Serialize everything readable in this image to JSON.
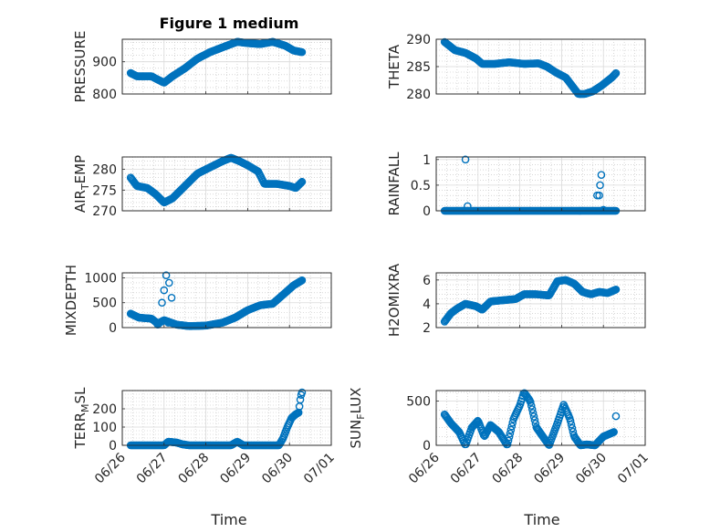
{
  "figure": {
    "title": "Figure 1 medium",
    "xlabel": "Time",
    "series_color": "#0072bd",
    "grid": "on",
    "minor_grid": "on"
  },
  "chart_data": [
    {
      "type": "scatter",
      "title": "Figure 1 medium",
      "ylabel": "PRESSURE",
      "xlabel": "",
      "ylim": [
        800,
        970
      ],
      "yticks": [
        800,
        900
      ],
      "xticks": [
        "06/26",
        "06/27",
        "06/28",
        "06/29",
        "06/30",
        "07/01"
      ],
      "xlim": [
        "06/26",
        "07/01"
      ],
      "shape": [
        [
          0.2,
          865
        ],
        [
          0.35,
          855
        ],
        [
          0.7,
          855
        ],
        [
          0.8,
          848
        ],
        [
          1.0,
          835
        ],
        [
          1.2,
          855
        ],
        [
          1.5,
          880
        ],
        [
          1.8,
          910
        ],
        [
          2.1,
          930
        ],
        [
          2.5,
          950
        ],
        [
          2.75,
          962
        ],
        [
          3.0,
          958
        ],
        [
          3.3,
          955
        ],
        [
          3.6,
          962
        ],
        [
          3.9,
          950
        ],
        [
          4.1,
          935
        ],
        [
          4.3,
          930
        ]
      ]
    },
    {
      "type": "scatter",
      "ylabel": "THETA",
      "xlabel": "",
      "ylim": [
        280,
        290
      ],
      "yticks": [
        280,
        285,
        290
      ],
      "xticks": [
        "06/26",
        "06/27",
        "06/28",
        "06/29",
        "06/30",
        "07/01"
      ],
      "xlim": [
        "06/26",
        "07/01"
      ],
      "shape": [
        [
          0.2,
          289.5
        ],
        [
          0.45,
          288
        ],
        [
          0.7,
          287.5
        ],
        [
          0.95,
          286.5
        ],
        [
          1.1,
          285.5
        ],
        [
          1.4,
          285.5
        ],
        [
          1.75,
          285.8
        ],
        [
          2.1,
          285.5
        ],
        [
          2.45,
          285.6
        ],
        [
          2.65,
          285
        ],
        [
          2.85,
          284
        ],
        [
          3.1,
          283
        ],
        [
          3.25,
          281.5
        ],
        [
          3.4,
          280
        ],
        [
          3.55,
          280
        ],
        [
          3.75,
          280.5
        ],
        [
          3.95,
          281.5
        ],
        [
          4.2,
          283
        ],
        [
          4.3,
          283.8
        ]
      ]
    },
    {
      "type": "scatter",
      "ylabel": "AIR_TEMP",
      "xlabel": "",
      "ylim": [
        270,
        283
      ],
      "yticks": [
        270,
        275,
        280
      ],
      "xticks": [
        "06/26",
        "06/27",
        "06/28",
        "06/29",
        "06/30",
        "07/01"
      ],
      "xlim": [
        "06/26",
        "07/01"
      ],
      "shape": [
        [
          0.2,
          278
        ],
        [
          0.35,
          276
        ],
        [
          0.6,
          275.5
        ],
        [
          0.8,
          274
        ],
        [
          1.0,
          272
        ],
        [
          1.2,
          273
        ],
        [
          1.5,
          276
        ],
        [
          1.8,
          279
        ],
        [
          2.1,
          280.5
        ],
        [
          2.4,
          282
        ],
        [
          2.6,
          282.8
        ],
        [
          2.8,
          282
        ],
        [
          3.0,
          281
        ],
        [
          3.25,
          279.5
        ],
        [
          3.4,
          276.5
        ],
        [
          3.7,
          276.5
        ],
        [
          4.0,
          276
        ],
        [
          4.15,
          275.5
        ],
        [
          4.3,
          277
        ]
      ]
    },
    {
      "type": "scatter",
      "ylabel": "RAINFALL",
      "xlabel": "",
      "ylim": [
        0,
        1.05
      ],
      "yticks": [
        0,
        0.5,
        1
      ],
      "xticks": [
        "06/26",
        "06/27",
        "06/28",
        "06/29",
        "06/30",
        "07/01"
      ],
      "xlim": [
        "06/26",
        "07/01"
      ],
      "shape": [
        [
          0.2,
          0
        ],
        [
          4.3,
          0
        ]
      ],
      "points": [
        [
          0.7,
          1.0
        ],
        [
          0.75,
          0.09
        ],
        [
          3.85,
          0.3
        ],
        [
          3.9,
          0.3
        ],
        [
          3.92,
          0.5
        ],
        [
          3.95,
          0.7
        ],
        [
          4.0,
          0.02
        ]
      ]
    },
    {
      "type": "scatter",
      "ylabel": "MIXDEPTH",
      "xlabel": "",
      "ylim": [
        0,
        1100
      ],
      "yticks": [
        0,
        500,
        1000
      ],
      "xticks": [
        "06/26",
        "06/27",
        "06/28",
        "06/29",
        "06/30",
        "07/01"
      ],
      "xlim": [
        "06/26",
        "07/01"
      ],
      "shape": [
        [
          0.2,
          280
        ],
        [
          0.4,
          200
        ],
        [
          0.7,
          180
        ],
        [
          0.85,
          80
        ],
        [
          1.0,
          150
        ],
        [
          1.3,
          60
        ],
        [
          1.6,
          30
        ],
        [
          2.0,
          40
        ],
        [
          2.4,
          100
        ],
        [
          2.7,
          200
        ],
        [
          3.0,
          350
        ],
        [
          3.3,
          450
        ],
        [
          3.6,
          480
        ],
        [
          3.9,
          700
        ],
        [
          4.1,
          850
        ],
        [
          4.3,
          950
        ]
      ],
      "points": [
        [
          0.85,
          60
        ],
        [
          0.95,
          500
        ],
        [
          1.0,
          750
        ],
        [
          1.05,
          1050
        ],
        [
          1.12,
          900
        ],
        [
          1.18,
          600
        ],
        [
          1.1,
          100
        ]
      ]
    },
    {
      "type": "scatter",
      "ylabel": "H2OMIXRA",
      "xlabel": "",
      "ylim": [
        2,
        6.6
      ],
      "yticks": [
        2,
        4,
        6
      ],
      "xticks": [
        "06/26",
        "06/27",
        "06/28",
        "06/29",
        "06/30",
        "07/01"
      ],
      "xlim": [
        "06/26",
        "07/01"
      ],
      "shape": [
        [
          0.2,
          2.5
        ],
        [
          0.35,
          3.2
        ],
        [
          0.5,
          3.6
        ],
        [
          0.7,
          4.0
        ],
        [
          0.95,
          3.8
        ],
        [
          1.1,
          3.5
        ],
        [
          1.3,
          4.2
        ],
        [
          1.6,
          4.3
        ],
        [
          1.9,
          4.4
        ],
        [
          2.1,
          4.8
        ],
        [
          2.4,
          4.8
        ],
        [
          2.7,
          4.7
        ],
        [
          2.9,
          5.9
        ],
        [
          3.1,
          6.0
        ],
        [
          3.3,
          5.7
        ],
        [
          3.5,
          5.0
        ],
        [
          3.7,
          4.8
        ],
        [
          3.9,
          5.0
        ],
        [
          4.1,
          4.9
        ],
        [
          4.3,
          5.2
        ]
      ]
    },
    {
      "type": "scatter",
      "ylabel": "TERR_MSL",
      "xlabel": "",
      "ylim": [
        0,
        300
      ],
      "yticks": [
        0,
        100,
        200
      ],
      "xticks": [
        "06/26",
        "06/27",
        "06/28",
        "06/29",
        "06/30",
        "07/01"
      ],
      "xlim": [
        "06/26",
        "07/01"
      ],
      "shape": [
        [
          0.2,
          0
        ],
        [
          1.0,
          0
        ],
        [
          1.1,
          20
        ],
        [
          1.3,
          15
        ],
        [
          1.45,
          5
        ],
        [
          1.6,
          0
        ],
        [
          2.6,
          0
        ],
        [
          2.75,
          20
        ],
        [
          2.9,
          0
        ],
        [
          3.75,
          0
        ],
        [
          3.85,
          40
        ],
        [
          3.95,
          100
        ],
        [
          4.05,
          150
        ],
        [
          4.15,
          170
        ],
        [
          4.22,
          180
        ],
        [
          4.27,
          270
        ],
        [
          4.3,
          290
        ]
      ]
    },
    {
      "type": "scatter",
      "ylabel": "SUN_FLUX",
      "xlabel": "",
      "ylim": [
        0,
        620
      ],
      "yticks": [
        0,
        500
      ],
      "xticks": [
        "06/26",
        "06/27",
        "06/28",
        "06/29",
        "06/30",
        "07/01"
      ],
      "xlim": [
        "06/26",
        "07/01"
      ],
      "shape": [
        [
          0.2,
          350
        ],
        [
          0.35,
          250
        ],
        [
          0.55,
          150
        ],
        [
          0.7,
          0
        ],
        [
          0.85,
          200
        ],
        [
          1.0,
          280
        ],
        [
          1.15,
          100
        ],
        [
          1.3,
          230
        ],
        [
          1.5,
          150
        ],
        [
          1.7,
          0
        ],
        [
          1.85,
          300
        ],
        [
          2.0,
          450
        ],
        [
          2.1,
          600
        ],
        [
          2.25,
          500
        ],
        [
          2.4,
          200
        ],
        [
          2.55,
          100
        ],
        [
          2.7,
          0
        ],
        [
          2.9,
          250
        ],
        [
          3.05,
          460
        ],
        [
          3.2,
          300
        ],
        [
          3.3,
          100
        ],
        [
          3.45,
          0
        ],
        [
          3.6,
          10
        ],
        [
          3.8,
          0
        ],
        [
          4.0,
          100
        ],
        [
          4.25,
          150
        ]
      ],
      "points": [
        [
          4.3,
          330
        ]
      ]
    }
  ]
}
